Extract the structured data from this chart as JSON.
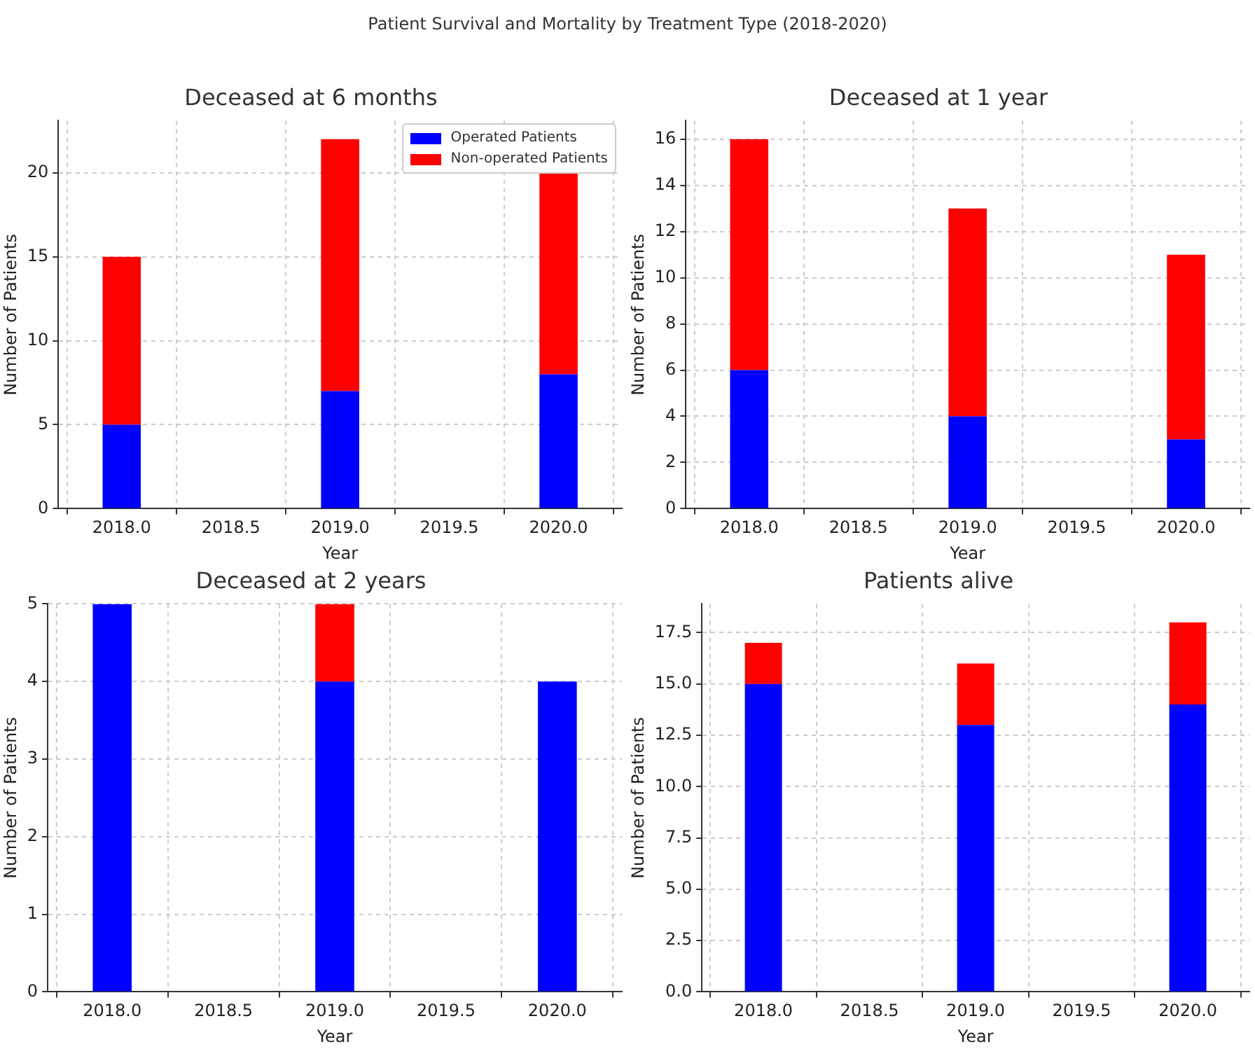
{
  "chart_data": [
    {
      "type": "bar",
      "title": "Deceased at 6 months",
      "annotations": [
        "Patient Survival and Mortality by Treatment Type (2018-2020)"
      ],
      "xlabel": "Year",
      "ylabel": "Number of Patients",
      "x": [
        2018,
        2019,
        2020
      ],
      "stacked": true,
      "series": [
        {
          "name": "Operated Patients",
          "color": "#0000ff",
          "values": [
            5,
            7,
            8
          ]
        },
        {
          "name": "Non-operated Patients",
          "color": "#ff0000",
          "values": [
            10,
            15,
            12
          ]
        }
      ],
      "xlim": [
        2017.71,
        2020.29
      ],
      "xticks": [
        {
          "value": 2018,
          "label": "2018.0"
        },
        {
          "value": 2018.5,
          "label": "2018.5"
        },
        {
          "value": 2019,
          "label": "2019.0"
        },
        {
          "value": 2019.5,
          "label": "2019.5"
        },
        {
          "value": 2020,
          "label": "2020.0"
        }
      ],
      "ylim": [
        0,
        23.1
      ],
      "yticks": [
        0,
        5,
        10,
        15,
        20
      ],
      "grid": true,
      "legend": "top right"
    },
    {
      "type": "bar",
      "title": "Deceased at 1 year",
      "xlabel": "Year",
      "ylabel": "Number of Patients",
      "x": [
        2018,
        2019,
        2020
      ],
      "stacked": true,
      "series": [
        {
          "color": "#0000ff",
          "values": [
            6,
            4,
            3
          ]
        },
        {
          "color": "#ff0000",
          "values": [
            10,
            9,
            8
          ]
        }
      ],
      "xlim": [
        2017.71,
        2020.29
      ],
      "xticks": [
        {
          "value": 2018,
          "label": "2018.0"
        },
        {
          "value": 2018.5,
          "label": "2018.5"
        },
        {
          "value": 2019,
          "label": "2019.0"
        },
        {
          "value": 2019.5,
          "label": "2019.5"
        },
        {
          "value": 2020,
          "label": "2020.0"
        }
      ],
      "ylim": [
        0,
        16.8
      ],
      "yticks": [
        0,
        2,
        4,
        6,
        8,
        10,
        12,
        14,
        16
      ],
      "grid": true
    },
    {
      "type": "bar",
      "title": "Deceased at 2 years",
      "xlabel": "Year",
      "ylabel": "Number of Patients",
      "x": [
        2018,
        2019,
        2020
      ],
      "stacked": true,
      "series": [
        {
          "color": "#0000ff",
          "values": [
            5,
            4,
            4
          ]
        },
        {
          "color": "#ff0000",
          "values": [
            0,
            1,
            0
          ]
        }
      ],
      "xlim": [
        2017.71,
        2020.29
      ],
      "xticks": [
        {
          "value": 2018,
          "label": "2018.0"
        },
        {
          "value": 2018.5,
          "label": "2018.5"
        },
        {
          "value": 2019,
          "label": "2019.0"
        },
        {
          "value": 2019.5,
          "label": "2019.5"
        },
        {
          "value": 2020,
          "label": "2020.0"
        }
      ],
      "ylim": [
        0,
        5
      ],
      "yticks": [
        0,
        1,
        2,
        3,
        4,
        5
      ],
      "grid": true
    },
    {
      "type": "bar",
      "title": "Patients alive",
      "xlabel": "Year",
      "ylabel": "Number of Patients",
      "x": [
        2018,
        2019,
        2020
      ],
      "stacked": true,
      "series": [
        {
          "color": "#0000ff",
          "values": [
            15,
            13,
            14
          ]
        },
        {
          "color": "#ff0000",
          "values": [
            2,
            3,
            4
          ]
        }
      ],
      "xlim": [
        2017.71,
        2020.29
      ],
      "xticks": [
        {
          "value": 2018,
          "label": "2018.0"
        },
        {
          "value": 2018.5,
          "label": "2018.5"
        },
        {
          "value": 2019,
          "label": "2019.0"
        },
        {
          "value": 2019.5,
          "label": "2019.5"
        },
        {
          "value": 2020,
          "label": "2020.0"
        }
      ],
      "ylim": [
        0,
        18.9
      ],
      "yticks": [
        {
          "value": 0,
          "label": "0.0"
        },
        {
          "value": 2.5,
          "label": "2.5"
        },
        {
          "value": 5,
          "label": "5.0"
        },
        {
          "value": 7.5,
          "label": "7.5"
        },
        {
          "value": 10,
          "label": "10.0"
        },
        {
          "value": 12.5,
          "label": "12.5"
        },
        {
          "value": 15,
          "label": "15.0"
        },
        {
          "value": 17.5,
          "label": "17.5"
        }
      ],
      "grid": true
    }
  ]
}
